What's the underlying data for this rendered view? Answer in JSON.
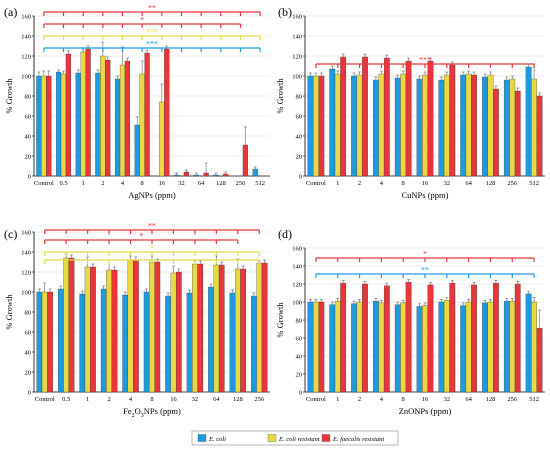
{
  "legend": [
    {
      "label": "E. coli",
      "color": "#1e9be0"
    },
    {
      "label": "E. coli resistant",
      "color": "#e8d844"
    },
    {
      "label": "E. faecalis resistant",
      "color": "#e8363a"
    }
  ],
  "chart_data": [
    {
      "type": "bar",
      "panel": "(a)",
      "xlabel": "AgNPs (ppm)",
      "ylabel": "% Growth",
      "ylim": [
        0,
        160
      ],
      "yticks": [
        0,
        20,
        40,
        60,
        80,
        100,
        120,
        140,
        160
      ],
      "categories": [
        "Control",
        "0.5",
        "1",
        "2",
        "4",
        "8",
        "16",
        "32",
        "64",
        "128",
        "256",
        "512"
      ],
      "series": [
        {
          "name": "E. coli",
          "values": [
            100,
            104,
            103,
            103,
            97,
            51,
            null,
            1,
            1,
            1,
            0,
            7
          ],
          "errors": [
            4,
            2,
            3,
            3,
            3,
            8,
            0,
            2,
            2,
            2,
            0,
            2
          ]
        },
        {
          "name": "E. coli resistant",
          "values": [
            100,
            102,
            124,
            120,
            111,
            102,
            74,
            null,
            null,
            null,
            null,
            null
          ],
          "errors": [
            5,
            3,
            4,
            14,
            18,
            13,
            18,
            0,
            0,
            0,
            0,
            0
          ]
        },
        {
          "name": "E. faecalis resistant",
          "values": [
            100,
            122,
            127,
            116,
            115,
            123,
            127,
            4,
            3,
            2,
            31,
            null
          ],
          "errors": [
            5,
            3,
            3,
            3,
            3,
            3,
            3,
            2,
            10,
            2,
            18,
            0
          ]
        }
      ],
      "significance": [
        {
          "label": "**",
          "color": "#e8363a",
          "from": 1,
          "to": 11
        },
        {
          "label": "*",
          "color": "#e8363a",
          "from": 1,
          "to": 10
        },
        {
          "label": "***",
          "color": "#e8d844",
          "from": 1,
          "to": 11
        },
        {
          "label": "***",
          "color": "#1e9be0",
          "from": 1,
          "to": 11
        }
      ]
    },
    {
      "type": "bar",
      "panel": "(b)",
      "xlabel": "CuNPs (ppm)",
      "ylabel": "% Growth",
      "ylim": [
        0,
        160
      ],
      "yticks": [
        0,
        20,
        40,
        60,
        80,
        100,
        120,
        140,
        160
      ],
      "categories": [
        "Control",
        "1",
        "2",
        "4",
        "8",
        "16",
        "32",
        "64",
        "128",
        "256",
        "512"
      ],
      "series": [
        {
          "name": "E. coli",
          "values": [
            100,
            107,
            100,
            96,
            98,
            97,
            96,
            101,
            99,
            96,
            109
          ],
          "errors": [
            3,
            3,
            3,
            3,
            3,
            3,
            3,
            3,
            3,
            3,
            3
          ]
        },
        {
          "name": "E. coli resistant",
          "values": [
            100,
            102,
            101,
            102,
            102,
            101,
            101,
            102,
            101,
            97,
            97
          ],
          "errors": [
            3,
            3,
            3,
            3,
            3,
            3,
            3,
            3,
            3,
            3,
            15
          ]
        },
        {
          "name": "E. faecalis resistant",
          "values": [
            100,
            119,
            119,
            118,
            115,
            115,
            111,
            101,
            87,
            85,
            80
          ],
          "errors": [
            3,
            3,
            3,
            3,
            3,
            3,
            3,
            3,
            3,
            3,
            3
          ]
        }
      ],
      "significance": [
        {
          "label": "***",
          "color": "#e8363a",
          "from": 1,
          "to": 10
        }
      ]
    },
    {
      "type": "bar",
      "panel": "(c)",
      "xlabel": "Fe2O3NPs (ppm)",
      "ylabel": "% Growth",
      "ylim": [
        0,
        160
      ],
      "yticks": [
        0,
        20,
        40,
        60,
        80,
        100,
        120,
        140,
        160
      ],
      "categories": [
        "Control",
        "0.5",
        "1",
        "2",
        "4",
        "8",
        "16",
        "32",
        "64",
        "128",
        "256"
      ],
      "series": [
        {
          "name": "E. coli",
          "values": [
            100,
            103,
            98,
            103,
            97,
            100,
            96,
            99,
            105,
            99,
            96
          ],
          "errors": [
            3,
            3,
            3,
            3,
            3,
            3,
            3,
            3,
            3,
            3,
            3
          ]
        },
        {
          "name": "E. coli resistant",
          "values": [
            100,
            134,
            125,
            122,
            132,
            130,
            119,
            128,
            127,
            123,
            129
          ],
          "errors": [
            9,
            4,
            10,
            10,
            4,
            6,
            7,
            3,
            9,
            10,
            2
          ]
        },
        {
          "name": "E. faecalis resistant",
          "values": [
            100,
            134,
            125,
            122,
            132,
            130,
            120,
            128,
            127,
            123,
            129
          ],
          "errors": [
            3,
            3,
            3,
            3,
            3,
            3,
            3,
            3,
            3,
            3,
            3
          ]
        }
      ],
      "significance": [
        {
          "label": "**",
          "color": "#e8363a",
          "from": 1,
          "to": 10
        },
        {
          "label": "*",
          "color": "#e8363a",
          "from": 1,
          "to": 9
        },
        {
          "label": "*",
          "color": "#e8d844",
          "from": 1,
          "to": 10
        },
        {
          "label": "",
          "color": "#e8d844",
          "from": 1,
          "to": 10
        }
      ]
    },
    {
      "type": "bar",
      "panel": "(d)",
      "xlabel": "ZnONPs (ppm)",
      "ylabel": "% Growth",
      "ylim": [
        0,
        160
      ],
      "yticks": [
        0,
        20,
        40,
        60,
        80,
        100,
        120,
        140,
        160
      ],
      "categories": [
        "Control",
        "1",
        "2",
        "4",
        "8",
        "16",
        "32",
        "64",
        "128",
        "256",
        "512"
      ],
      "series": [
        {
          "name": "E. coli",
          "values": [
            100,
            97,
            98,
            101,
            97,
            95,
            100,
            96,
            99,
            101,
            109
          ],
          "errors": [
            3,
            3,
            3,
            3,
            3,
            3,
            3,
            3,
            3,
            3,
            3
          ]
        },
        {
          "name": "E. coli resistant",
          "values": [
            100,
            101,
            100,
            99,
            99,
            96,
            102,
            100,
            100,
            101,
            100
          ],
          "errors": [
            3,
            3,
            3,
            3,
            3,
            3,
            3,
            3,
            3,
            3,
            5
          ]
        },
        {
          "name": "E. faecalis resistant",
          "values": [
            100,
            121,
            120,
            118,
            122,
            119,
            121,
            119,
            121,
            120,
            71
          ],
          "errors": [
            3,
            3,
            3,
            3,
            3,
            3,
            3,
            3,
            3,
            3,
            20
          ]
        }
      ],
      "significance": [
        {
          "label": "*",
          "color": "#e8363a",
          "from": 1,
          "to": 10
        },
        {
          "label": "**",
          "color": "#1e9be0",
          "from": 1,
          "to": 10
        }
      ]
    }
  ]
}
